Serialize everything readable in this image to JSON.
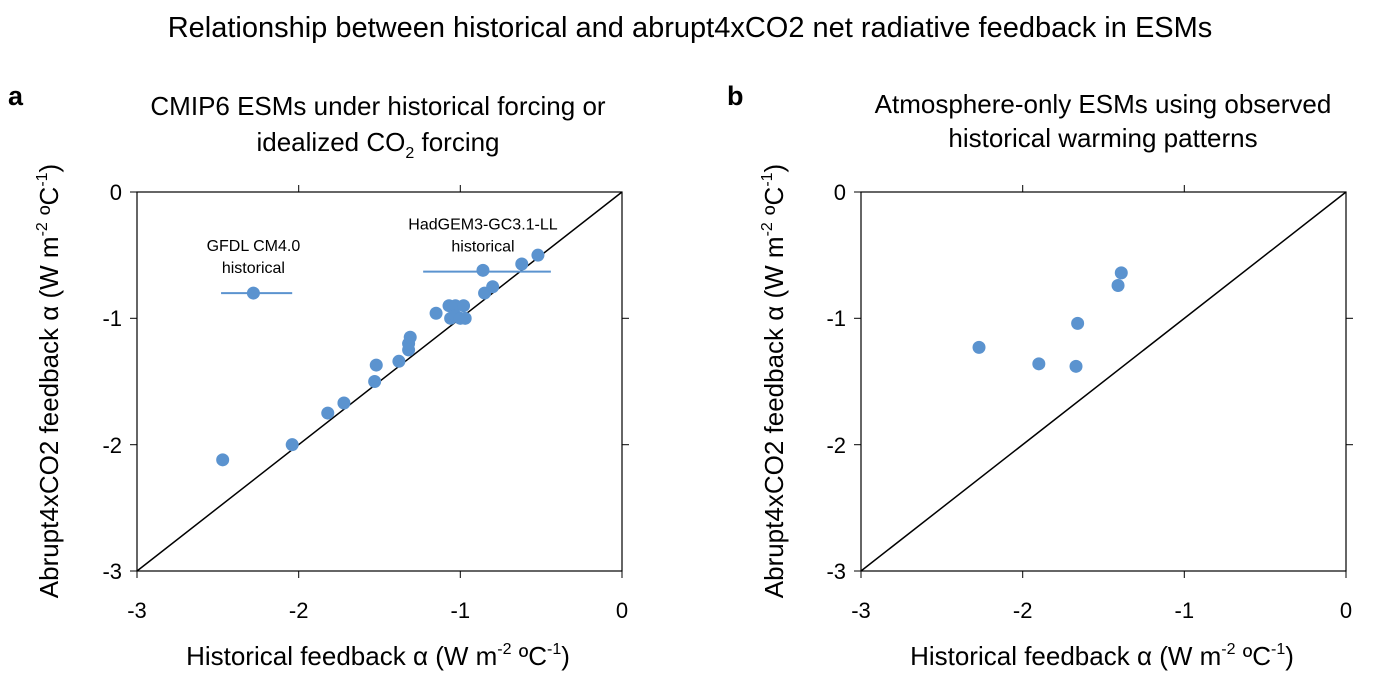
{
  "figure_title": "Relationship between historical and abrupt4xCO2 net radiative feedback in ESMs",
  "colors": {
    "marker": "#5b93cf",
    "line": "#000000",
    "axis": "#000000"
  },
  "chart_data": [
    {
      "type": "scatter",
      "panel_letter": "a",
      "title_line1": "CMIP6 ESMs under historical forcing or",
      "title_line2_main": "idealized CO",
      "title_line2_sub": "2",
      "title_line2_end": " forcing",
      "xlabel": {
        "main": "Historical feedback α (W m",
        "sup1": "-2",
        "mid": " ºC",
        "sup2": "-1",
        "end": ")"
      },
      "ylabel": {
        "main": "Abrupt4xCO2 feedback α (W m",
        "sup1": "-2",
        "mid": " ºC",
        "sup2": "-1",
        "end": ")"
      },
      "xlim": [
        -3,
        0
      ],
      "ylim": [
        -3,
        0
      ],
      "xticks": [
        -3,
        -2,
        -1,
        0
      ],
      "yticks": [
        0,
        -1,
        -2,
        -3
      ],
      "xtick_labels": [
        "-3",
        "-2",
        "-1",
        "0"
      ],
      "ytick_labels": [
        "0",
        "-1",
        "-2",
        "-3"
      ],
      "one_to_one_line": true,
      "points": [
        {
          "x": -2.47,
          "y": -2.12
        },
        {
          "x": -2.04,
          "y": -2.0
        },
        {
          "x": -1.82,
          "y": -1.75
        },
        {
          "x": -1.72,
          "y": -1.67
        },
        {
          "x": -1.53,
          "y": -1.5
        },
        {
          "x": -1.52,
          "y": -1.37
        },
        {
          "x": -1.38,
          "y": -1.34
        },
        {
          "x": -1.32,
          "y": -1.25
        },
        {
          "x": -1.32,
          "y": -1.2
        },
        {
          "x": -1.31,
          "y": -1.15
        },
        {
          "x": -1.15,
          "y": -0.96
        },
        {
          "x": -1.07,
          "y": -0.9
        },
        {
          "x": -1.03,
          "y": -0.9
        },
        {
          "x": -0.98,
          "y": -0.9
        },
        {
          "x": -1.06,
          "y": -1.0
        },
        {
          "x": -1.03,
          "y": -0.98
        },
        {
          "x": -1.0,
          "y": -1.0
        },
        {
          "x": -0.97,
          "y": -1.0
        },
        {
          "x": -0.85,
          "y": -0.8
        },
        {
          "x": -0.8,
          "y": -0.75
        },
        {
          "x": -0.62,
          "y": -0.57
        },
        {
          "x": -0.52,
          "y": -0.5
        },
        {
          "x": -0.86,
          "y": -0.62
        },
        {
          "x": -2.28,
          "y": -0.8
        }
      ],
      "range_bars": [
        {
          "y": -0.8,
          "x_min": -2.48,
          "x_max": -2.04
        },
        {
          "y": -0.63,
          "x_min": -1.23,
          "x_max": -0.44
        }
      ],
      "annotations": [
        {
          "line1": "GFDL CM4.0",
          "line2": "historical",
          "x": -2.28,
          "y": -0.8
        },
        {
          "line1": "HadGEM3-GC3.1-LL",
          "line2": "historical",
          "x": -0.86,
          "y": -0.63
        }
      ]
    },
    {
      "type": "scatter",
      "panel_letter": "b",
      "title_line1": "Atmosphere-only ESMs using observed",
      "title_line2_main": "historical warming patterns",
      "title_line2_sub": "",
      "title_line2_end": "",
      "xlabel": {
        "main": "Historical feedback α (W m",
        "sup1": "-2",
        "mid": " ºC",
        "sup2": "-1",
        "end": ")"
      },
      "ylabel": {
        "main": "Abrupt4xCO2 feedback α (W m",
        "sup1": "-2",
        "mid": " ºC",
        "sup2": "-1",
        "end": ")"
      },
      "xlim": [
        -3,
        0
      ],
      "ylim": [
        -3,
        0
      ],
      "xticks": [
        -3,
        -2,
        -1,
        0
      ],
      "yticks": [
        0,
        -1,
        -2,
        -3
      ],
      "xtick_labels": [
        "-3",
        "-2",
        "-1",
        "0"
      ],
      "ytick_labels": [
        "0",
        "-1",
        "-2",
        "-3"
      ],
      "one_to_one_line": true,
      "points": [
        {
          "x": -2.27,
          "y": -1.23
        },
        {
          "x": -1.9,
          "y": -1.36
        },
        {
          "x": -1.67,
          "y": -1.38
        },
        {
          "x": -1.66,
          "y": -1.04
        },
        {
          "x": -1.41,
          "y": -0.74
        },
        {
          "x": -1.39,
          "y": -0.64
        }
      ],
      "range_bars": [],
      "annotations": []
    }
  ]
}
